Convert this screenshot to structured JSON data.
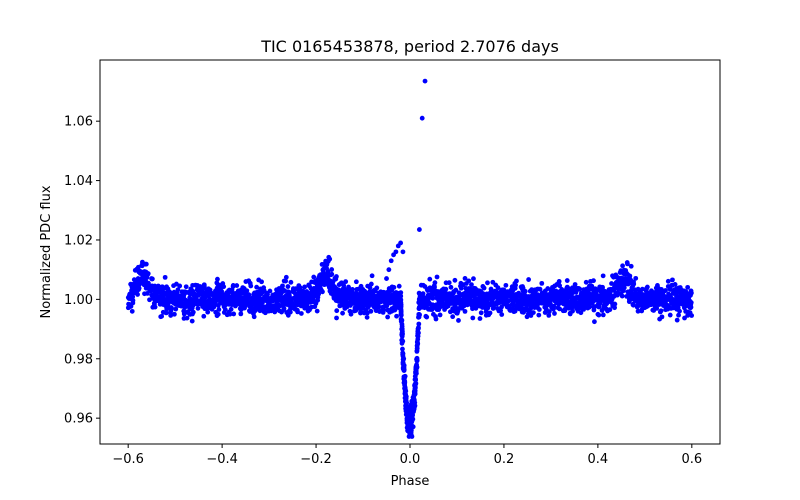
{
  "chart_data": {
    "type": "scatter",
    "title": "TIC 0165453878, period 2.7076 days",
    "xlabel": "Phase",
    "ylabel": "Normalized PDC flux",
    "xlim": [
      -0.66,
      0.66
    ],
    "ylim": [
      0.9513,
      1.0806
    ],
    "xticks": [
      -0.6,
      -0.4,
      -0.2,
      0.0,
      0.2,
      0.4,
      0.6
    ],
    "xtick_labels": [
      "−0.6",
      "−0.4",
      "−0.2",
      "0.0",
      "0.2",
      "0.4",
      "0.6"
    ],
    "yticks": [
      0.96,
      0.98,
      1.0,
      1.02,
      1.04,
      1.06
    ],
    "ytick_labels": [
      "0.96",
      "0.98",
      "1.00",
      "1.02",
      "1.04",
      "1.06"
    ],
    "marker_color": "#0000ff",
    "grid": false,
    "legend": "none",
    "x_data_range": [
      -0.6,
      0.6
    ],
    "baseline_flux": 1.0,
    "baseline_scatter": 0.0025,
    "transit": {
      "center_phase": 0.0,
      "min_flux": 0.958,
      "half_width_phase": 0.02
    },
    "bumps": [
      {
        "center_phase": -0.57,
        "peak_flux": 1.01
      },
      {
        "center_phase": -0.18,
        "peak_flux": 1.012
      },
      {
        "center_phase": 0.455,
        "peak_flux": 1.01
      }
    ],
    "outliers": [
      {
        "x": -0.05,
        "y": 1.007
      },
      {
        "x": -0.045,
        "y": 1.01
      },
      {
        "x": -0.04,
        "y": 1.013
      },
      {
        "x": -0.035,
        "y": 1.015
      },
      {
        "x": -0.03,
        "y": 1.016
      },
      {
        "x": -0.025,
        "y": 1.018
      },
      {
        "x": -0.02,
        "y": 1.019
      },
      {
        "x": -0.015,
        "y": 1.016
      },
      {
        "x": 0.02,
        "y": 1.0235
      },
      {
        "x": 0.026,
        "y": 1.061
      },
      {
        "x": 0.032,
        "y": 1.0735
      }
    ]
  }
}
